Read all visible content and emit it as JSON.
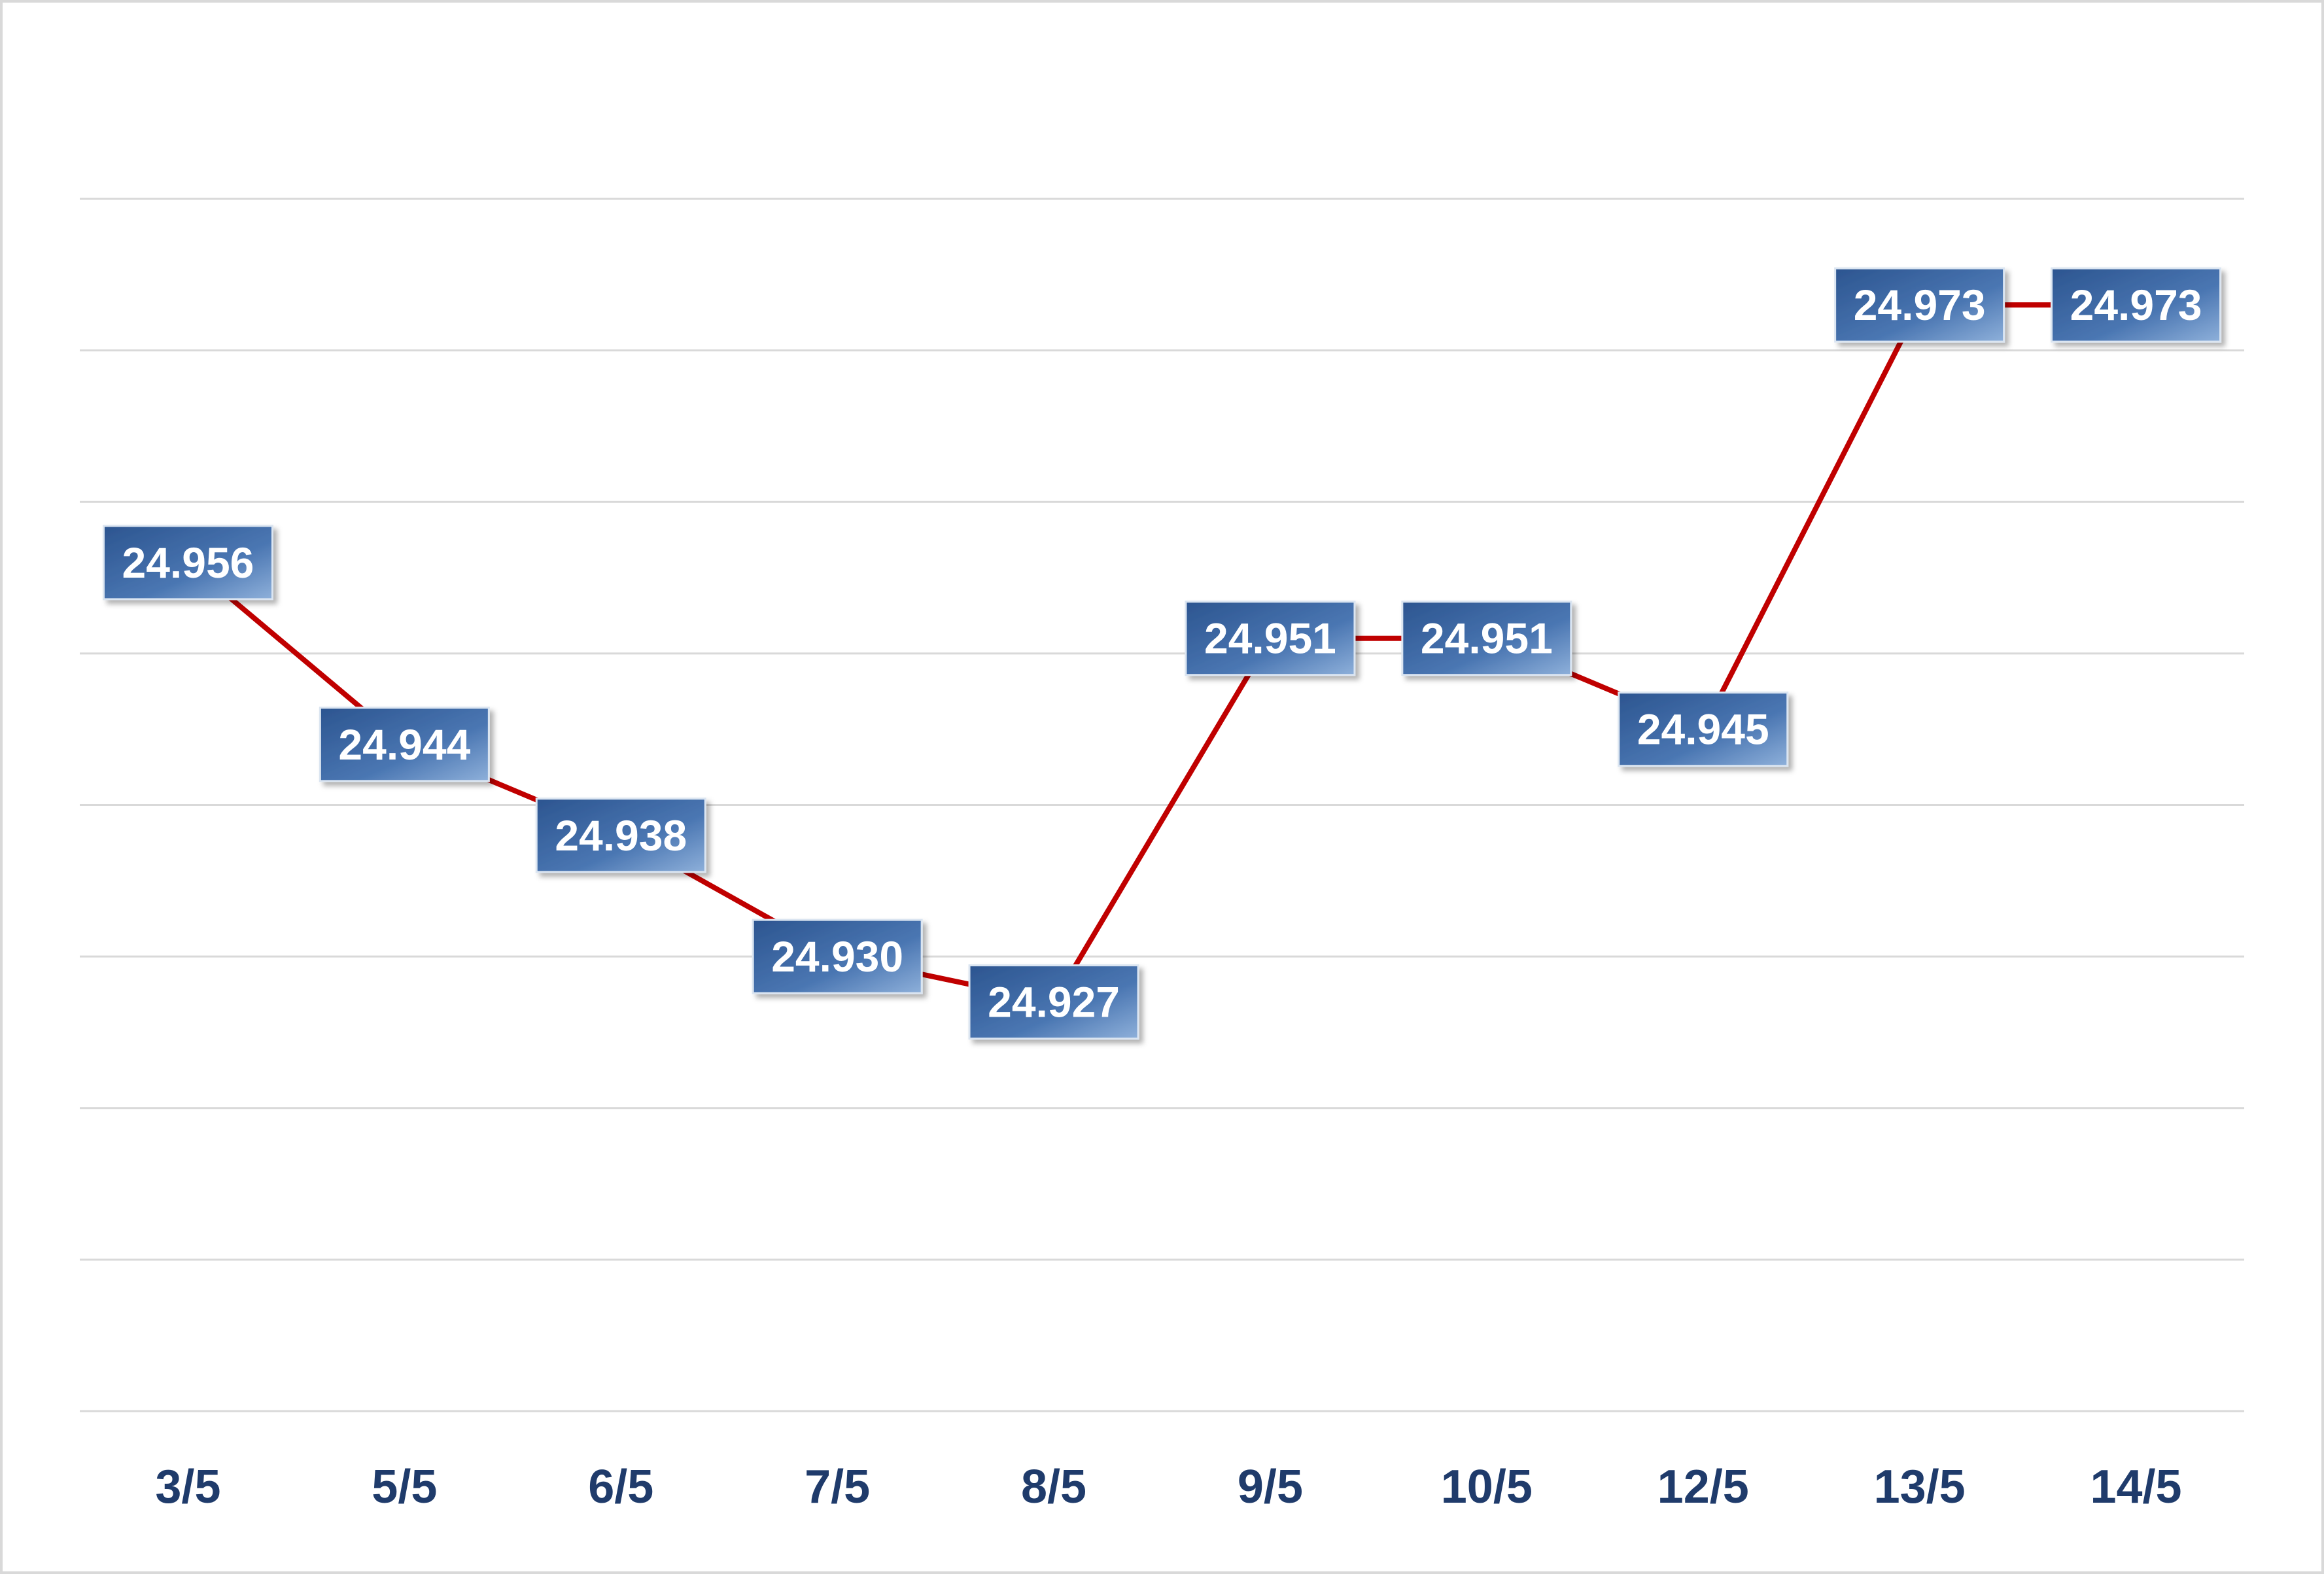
{
  "chart_data": {
    "type": "line",
    "categories": [
      "3/5",
      "5/5",
      "6/5",
      "7/5",
      "8/5",
      "9/5",
      "10/5",
      "12/5",
      "13/5",
      "14/5"
    ],
    "series": [
      {
        "color": "#c00000",
        "values": [
          24956,
          24944,
          24938,
          24930,
          24927,
          24951,
          24951,
          24945,
          24973,
          24973
        ],
        "value_labels": [
          "24.956",
          "24.944",
          "24.938",
          "24.930",
          "24.927",
          "24.951",
          "24.951",
          "24.945",
          "24.973",
          "24.973"
        ]
      }
    ],
    "ylim": [
      24900,
      24980
    ],
    "yticks": [
      24900,
      24910,
      24920,
      24930,
      24940,
      24950,
      24960,
      24970,
      24980
    ],
    "grid": true
  }
}
